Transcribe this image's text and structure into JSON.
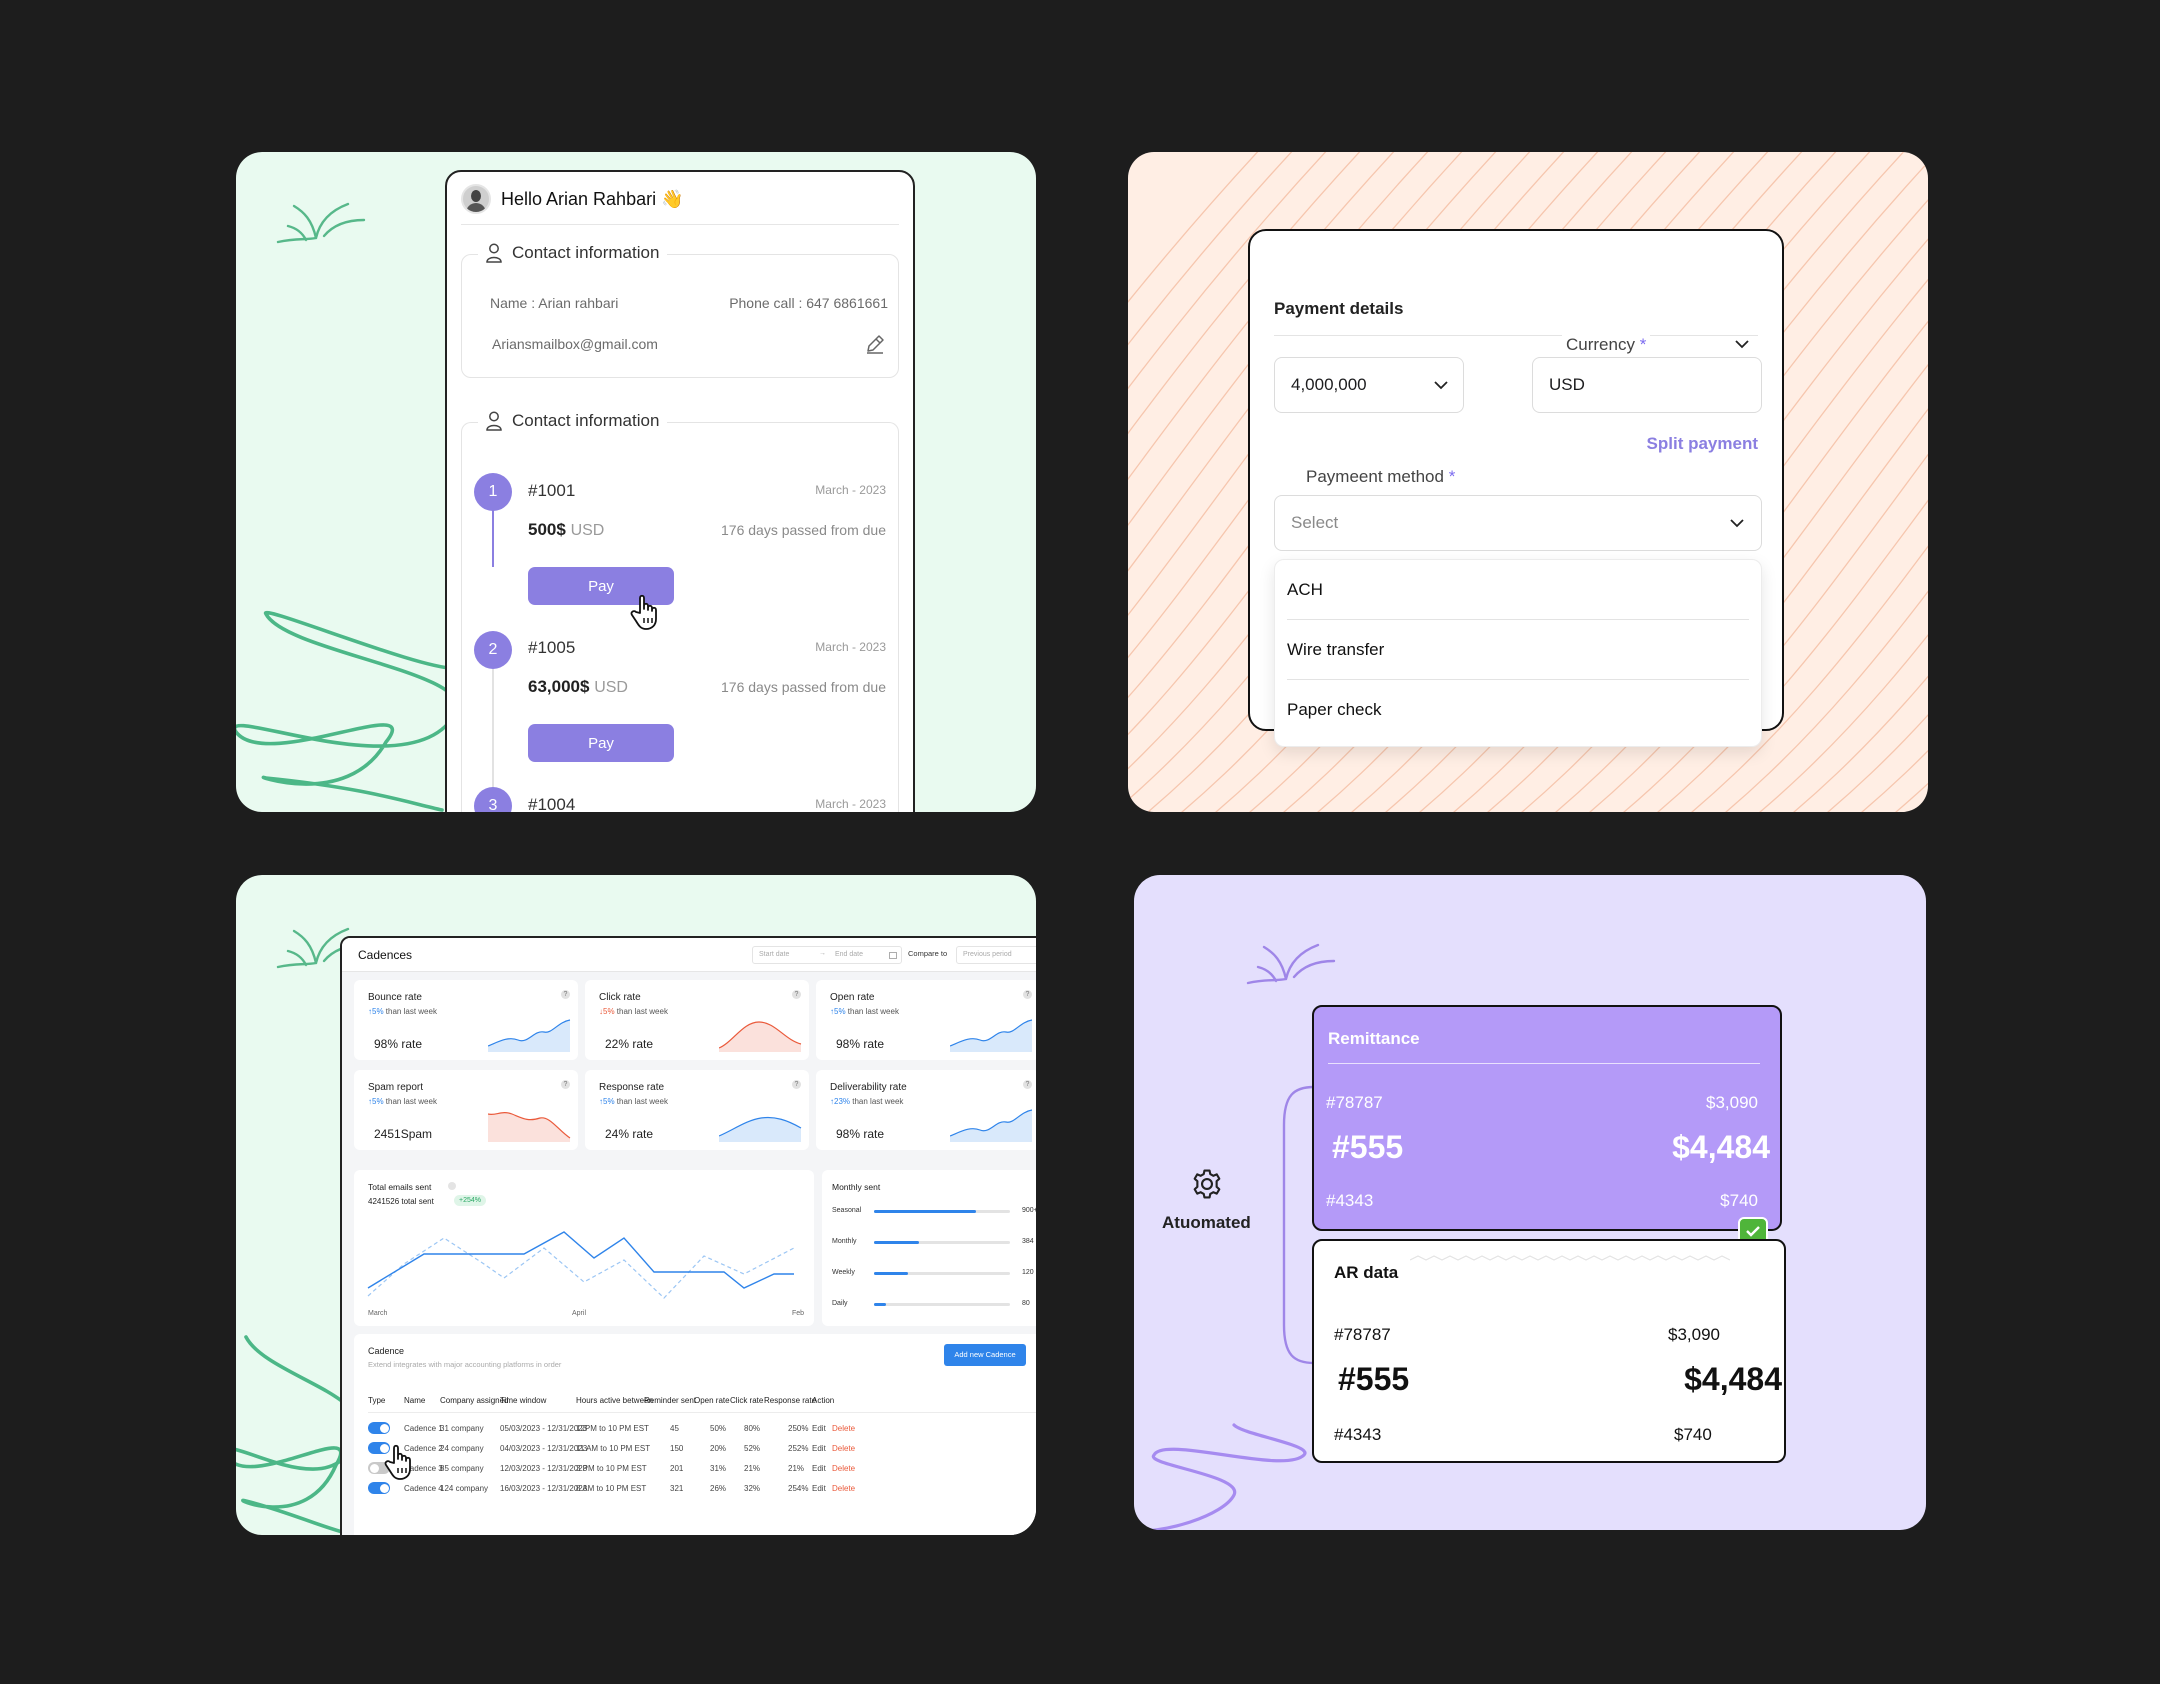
{
  "contact_panel": {
    "greeting": "Hello Arian Rahbari 👋",
    "contact_section_title": "Contact information",
    "name_label": "Name : Arian rahbari",
    "phone_label": "Phone call : 647 6861661",
    "email": "Ariansmailbox@gmail.com",
    "invoices_section_title": "Contact information",
    "invoices": [
      {
        "step": "1",
        "id": "#1001",
        "date": "March - 2023",
        "amount": "500$",
        "currency": "USD",
        "due": "176 days passed from due",
        "pay_label": "Pay"
      },
      {
        "step": "2",
        "id": "#1005",
        "date": "March - 2023",
        "amount": "63,000$",
        "currency": "USD",
        "due": "176 days passed from due",
        "pay_label": "Pay"
      },
      {
        "step": "3",
        "id": "#1004",
        "date": "March - 2023"
      }
    ]
  },
  "payment_panel": {
    "title": "Payment details",
    "amount_value": "4,000,000",
    "currency_label": "Currency",
    "currency_required": "*",
    "currency_value": "USD",
    "split_payment": "Split payment",
    "method_label": "Paymeent method",
    "method_required": "*",
    "method_placeholder": "Select",
    "options": [
      "ACH",
      "Wire transfer",
      "Paper check"
    ]
  },
  "dashboard_panel": {
    "title": "Cadences",
    "start_date": "Start date",
    "end_date": "End date",
    "compare_to": "Compare to",
    "previous_period": "Previous period",
    "kpis": [
      {
        "title": "Bounce rate",
        "delta": "5%",
        "delta_dir": "up",
        "delta_text": "than last week",
        "value": "98% rate",
        "trend": "up"
      },
      {
        "title": "Click rate",
        "delta": "5%",
        "delta_dir": "down",
        "delta_text": "than last week",
        "value": "22% rate",
        "trend": "hump-red"
      },
      {
        "title": "Open rate",
        "delta": "5%",
        "delta_dir": "up",
        "delta_text": "than last week",
        "value": "98% rate",
        "trend": "up"
      },
      {
        "title": "Spam report",
        "delta": "5%",
        "delta_dir": "up",
        "delta_text": "than last week",
        "value": "2451Spam",
        "trend": "down-red"
      },
      {
        "title": "Response rate",
        "delta": "5%",
        "delta_dir": "up",
        "delta_text": "than last week",
        "value": "24% rate",
        "trend": "hump-blue"
      },
      {
        "title": "Deliverability rate",
        "delta": "23%",
        "delta_dir": "up",
        "delta_text": "than last week",
        "value": "98% rate",
        "trend": "up"
      }
    ],
    "total_emails": {
      "title": "Total emails sent",
      "total": "4241526 total sent",
      "badge": "+254%",
      "x_labels": [
        "March",
        "April",
        "Feb"
      ]
    },
    "monthly_sent": {
      "title": "Monthly sent",
      "rows": [
        {
          "label": "Seasonal",
          "value": "900+",
          "fill": 0.75
        },
        {
          "label": "Monthly",
          "value": "384",
          "fill": 0.33
        },
        {
          "label": "Weekly",
          "value": "120",
          "fill": 0.25
        },
        {
          "label": "Daily",
          "value": "80",
          "fill": 0.09
        }
      ]
    },
    "cadence_table": {
      "title": "Cadence",
      "subtitle": "Extend integrates with major accounting platforms in order",
      "add_button": "Add new Cadence",
      "columns": [
        "Type",
        "Name",
        "Company assigned",
        "Time window",
        "Hours active between",
        "Reminder sent",
        "Open rate",
        "Click rate",
        "Response rate",
        "Action"
      ],
      "rows": [
        {
          "on": true,
          "name": "Cadence 1",
          "company": "31 company",
          "window": "05/03/2023 - 12/31/2023",
          "hours": "12PM to 10 PM EST",
          "reminder": "45",
          "open": "50%",
          "click": "80%",
          "response": "250%",
          "edit": "Edit",
          "delete": "Delete"
        },
        {
          "on": true,
          "name": "Cadence 2",
          "company": "24 company",
          "window": "04/03/2023 - 12/31/2023",
          "hours": "11 AM to 10 PM EST",
          "reminder": "150",
          "open": "20%",
          "click": "52%",
          "response": "252%",
          "edit": "Edit",
          "delete": "Delete"
        },
        {
          "on": false,
          "name": "Cadence 3",
          "company": "85 company",
          "window": "12/03/2023 - 12/31/2023",
          "hours": "3 PM to 10 PM EST",
          "reminder": "201",
          "open": "31%",
          "click": "21%",
          "response": "21%",
          "edit": "Edit",
          "delete": "Delete"
        },
        {
          "on": true,
          "name": "Cadence 4",
          "company": "124 company",
          "window": "16/03/2023 - 12/31/2023",
          "hours": "8 AM to 10 PM EST",
          "reminder": "321",
          "open": "26%",
          "click": "32%",
          "response": "254%",
          "edit": "Edit",
          "delete": "Delete"
        }
      ]
    }
  },
  "automation_panel": {
    "automated_label": "Atuomated",
    "remittance": {
      "title": "Remittance",
      "row1_id": "#78787",
      "row1_amount": "$3,090",
      "row2_id": "#555",
      "row2_amount": "$4,484",
      "row3_id": "#4343",
      "row3_amount": "$740"
    },
    "ar_data": {
      "title": "AR data",
      "row1_id": "#78787",
      "row1_amount": "$3,090",
      "row2_id": "#555",
      "row2_amount": "$4,484",
      "row3_id": "#4343",
      "row3_amount": "$740"
    }
  },
  "colors": {
    "purple_accent": "#8b7fe1",
    "blue_accent": "#2f84ea",
    "red_accent": "#ea5a3b",
    "green_check": "#4fb53a"
  }
}
